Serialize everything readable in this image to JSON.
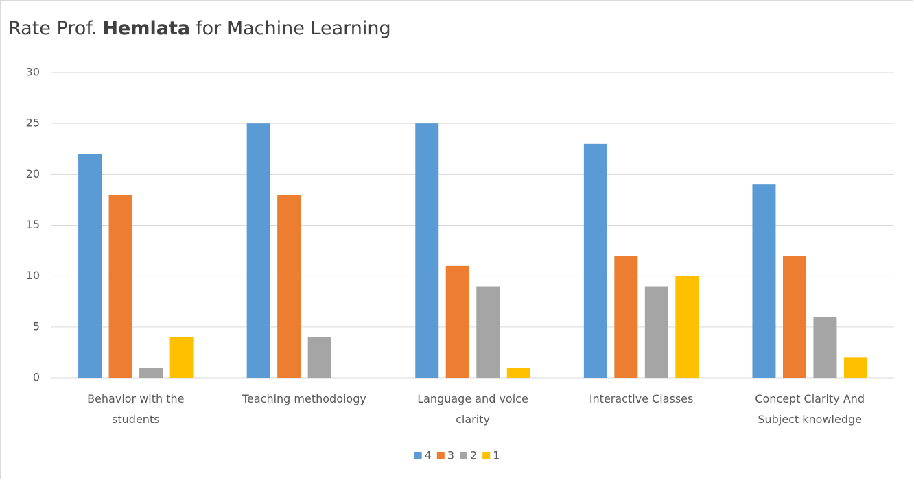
{
  "chart_data": {
    "type": "bar",
    "title_parts": [
      {
        "text": "Rate Prof.",
        "bold": false
      },
      {
        "text": "Hemlata",
        "bold": true
      },
      {
        "text": "for Machine Learning",
        "bold": false
      }
    ],
    "categories": [
      "Behavior with the students",
      "Teaching methodology",
      "Language and voice clarity",
      "Interactive Classes",
      "Concept Clarity And Subject knowledge"
    ],
    "series": [
      {
        "name": "4",
        "color": "#5b9bd5",
        "values": [
          22,
          25,
          25,
          23,
          19
        ]
      },
      {
        "name": "3",
        "color": "#ed7d31",
        "values": [
          18,
          18,
          11,
          12,
          12
        ]
      },
      {
        "name": "2",
        "color": "#a5a5a5",
        "values": [
          1,
          4,
          9,
          9,
          6
        ]
      },
      {
        "name": "1",
        "color": "#ffc000",
        "values": [
          4,
          0,
          1,
          10,
          2
        ]
      }
    ],
    "ylim": [
      0,
      30
    ],
    "yticks": [
      0,
      5,
      10,
      15,
      20,
      25,
      30
    ],
    "grid": true,
    "legend": "bottom"
  }
}
